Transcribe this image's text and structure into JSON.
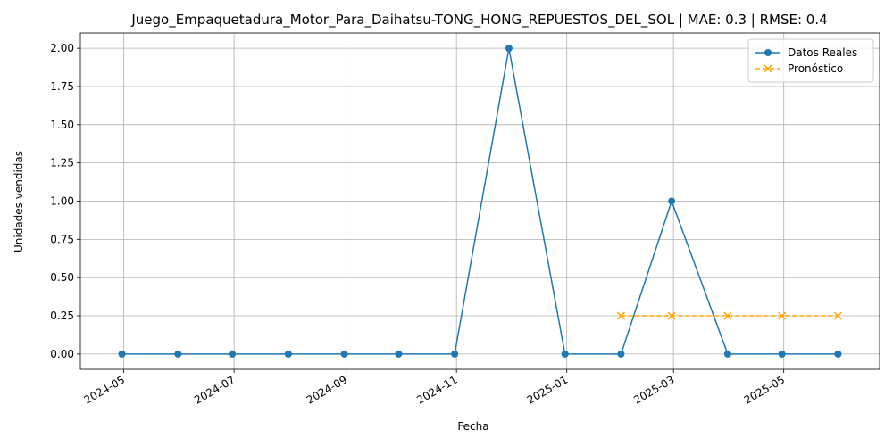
{
  "chart_data": {
    "type": "line",
    "title": "Juego_Empaquetadura_Motor_Para_Daihatsu-TONG_HONG_REPUESTOS_DEL_SOL | MAE: 0.3 | RMSE: 0.4",
    "xlabel": "Fecha",
    "ylabel": "Unidades vendidas",
    "ylim": [
      -0.1,
      2.1
    ],
    "xlim": [
      "2024-04-07",
      "2025-06-23"
    ],
    "grid": true,
    "legend_position": "top-right",
    "x_ticks": [
      "2024-05",
      "2024-07",
      "2024-09",
      "2024-11",
      "2025-01",
      "2025-03",
      "2025-05"
    ],
    "y_ticks": [
      "0.00",
      "0.25",
      "0.50",
      "0.75",
      "1.00",
      "1.25",
      "1.50",
      "1.75",
      "2.00"
    ],
    "series": [
      {
        "name": "Datos Reales",
        "color": "#1f77b4",
        "marker": "circle",
        "linestyle": "solid",
        "x": [
          "2024-04-30",
          "2024-05-31",
          "2024-06-30",
          "2024-07-31",
          "2024-08-31",
          "2024-09-30",
          "2024-10-31",
          "2024-11-30",
          "2024-12-31",
          "2025-01-31",
          "2025-02-28",
          "2025-03-31",
          "2025-04-30",
          "2025-05-31"
        ],
        "values": [
          0,
          0,
          0,
          0,
          0,
          0,
          0,
          2,
          0,
          0,
          1,
          0,
          0,
          0
        ]
      },
      {
        "name": "Pronóstico",
        "color": "#ffa500",
        "marker": "x",
        "linestyle": "dashed",
        "x": [
          "2025-01-31",
          "2025-02-28",
          "2025-03-31",
          "2025-04-30",
          "2025-05-31"
        ],
        "values": [
          0.25,
          0.25,
          0.25,
          0.25,
          0.25
        ]
      }
    ]
  }
}
